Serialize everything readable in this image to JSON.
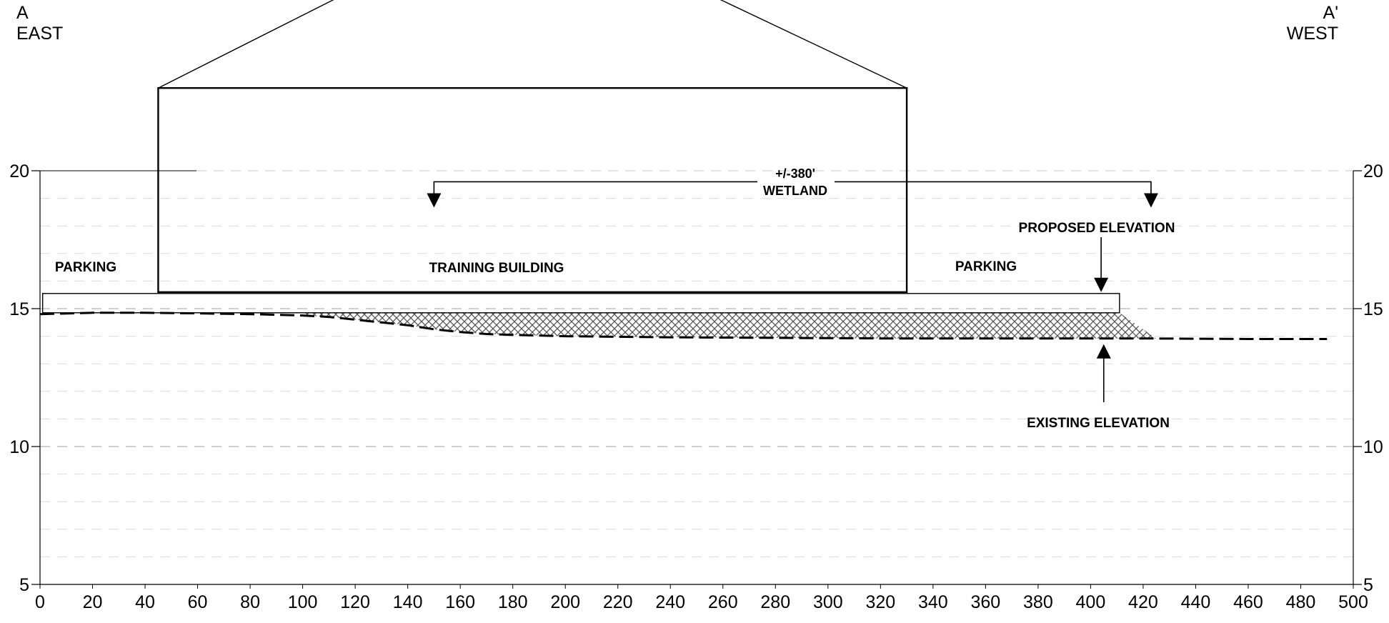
{
  "section": {
    "left_end": {
      "mark": "A",
      "direction": "EAST"
    },
    "right_end": {
      "mark": "A'",
      "direction": "WEST"
    }
  },
  "labels": {
    "parking_left": "PARKING",
    "training_building": "TRAINING BUILDING",
    "parking_right": "PARKING",
    "wetland_width": "+/-380'",
    "wetland": "WETLAND",
    "proposed_elevation": "PROPOSED ELEVATION",
    "existing_elevation": "EXISTING ELEVATION"
  },
  "chart_data": {
    "type": "line",
    "x_ticks": [
      0,
      20,
      40,
      60,
      80,
      100,
      120,
      140,
      160,
      180,
      200,
      220,
      240,
      260,
      280,
      300,
      320,
      340,
      360,
      380,
      400,
      420,
      440,
      460,
      480,
      500
    ],
    "y_ticks": [
      5,
      10,
      15,
      20
    ],
    "xlim": [
      0,
      500
    ],
    "ylim": [
      5,
      20
    ],
    "grid": "dashed horizontal lines at 1 ft intervals",
    "existing_grade": {
      "x": [
        0,
        20,
        40,
        60,
        80,
        100,
        110,
        120,
        130,
        140,
        150,
        160,
        170,
        180,
        200,
        220,
        240,
        260,
        280,
        300,
        320,
        340,
        360,
        380,
        400,
        420,
        440,
        460,
        480,
        490
      ],
      "y": [
        14.8,
        14.85,
        14.85,
        14.83,
        14.8,
        14.75,
        14.7,
        14.6,
        14.5,
        14.4,
        14.25,
        14.15,
        14.08,
        14.05,
        14.0,
        13.98,
        13.96,
        13.95,
        13.94,
        13.93,
        13.92,
        13.92,
        13.92,
        13.92,
        13.92,
        13.92,
        13.91,
        13.9,
        13.9,
        13.9
      ]
    },
    "proposed_pad": {
      "x_start": 1,
      "x_end": 411,
      "y_bottom": 14.85,
      "y_top": 15.55
    },
    "fill_extent": {
      "x_start": 100,
      "x_end": 425
    },
    "building": {
      "x_start": 45,
      "x_end": 330,
      "y_floor": 15.6,
      "y_eave": 23.0
    },
    "wetland_span": {
      "x_start": 150,
      "x_end": 423,
      "y": 19.6
    },
    "callouts": {
      "proposed_elevation_x": 404,
      "existing_elevation_x": 405
    }
  },
  "colors": {
    "ink": "#000000",
    "grid": "#c8c8c8",
    "hatch": "#555555"
  }
}
